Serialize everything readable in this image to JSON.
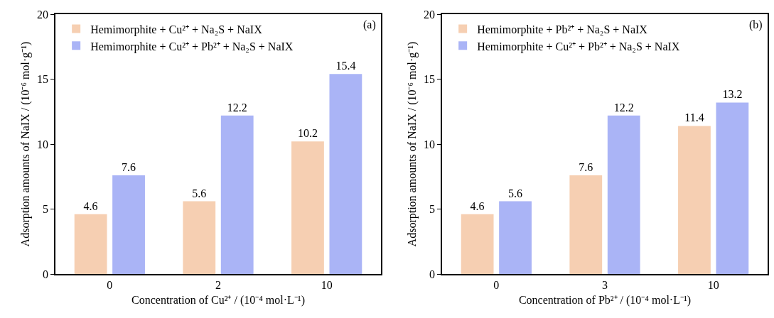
{
  "chart_data": [
    {
      "type": "bar",
      "categories": [
        "0",
        "2",
        "10"
      ],
      "xlabel": "Concentration of Cu²⁺ / (10⁻⁴ mol·L⁻¹)",
      "ylabel": "Adsorption amounts of NaIX / (10⁻⁶ mol·g⁻¹)",
      "annotations": [
        "(a)"
      ],
      "series": [
        {
          "name": "Hemimorphite + Cu²⁺ + Na₂S + NaIX",
          "color": "#f6cfb2",
          "values": [
            4.6,
            5.6,
            10.2
          ]
        },
        {
          "name": "Hemimorphite + Cu²⁺ + Pb²⁺ + Na₂S + NaIX",
          "color": "#aab4f6",
          "values": [
            7.6,
            12.2,
            15.4
          ]
        }
      ],
      "ylim": [
        0,
        20
      ],
      "yticks": [
        0,
        5,
        10,
        15,
        20
      ],
      "data_labels": true,
      "legend": "top left",
      "grid": false
    },
    {
      "type": "bar",
      "categories": [
        "0",
        "3",
        "10"
      ],
      "xlabel": "Concentration of Pb²⁺ / (10⁻⁴ mol·L⁻¹)",
      "ylabel": "Adsorption amounts of NaIX / (10⁻⁶ mol·g⁻¹)",
      "annotations": [
        "(b)"
      ],
      "series": [
        {
          "name": "Hemimorphite + Pb²⁺ + Na₂S + NaIX",
          "color": "#f6cfb2",
          "values": [
            4.6,
            7.6,
            11.4
          ]
        },
        {
          "name": "Hemimorphite + Cu²⁺ + Pb²⁺ + Na₂S + NaIX",
          "color": "#aab4f6",
          "values": [
            5.6,
            12.2,
            13.2
          ]
        }
      ],
      "ylim": [
        0,
        20
      ],
      "yticks": [
        0,
        5,
        10,
        15,
        20
      ],
      "data_labels": true,
      "legend": "top left",
      "grid": false
    }
  ]
}
